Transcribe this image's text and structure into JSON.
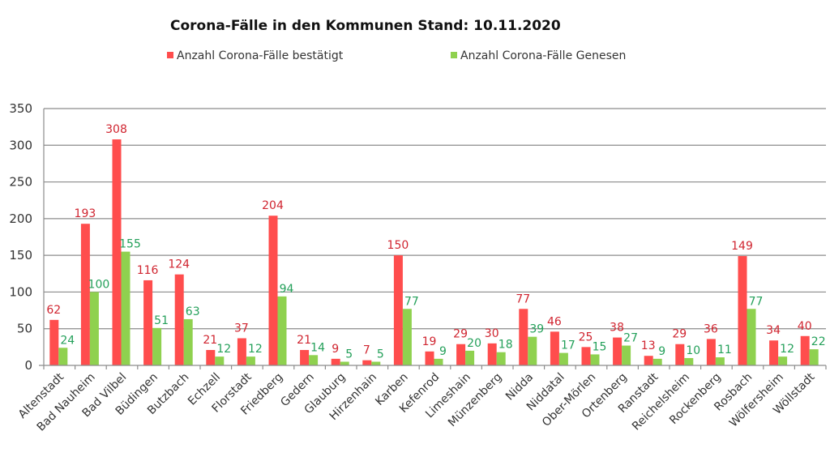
{
  "chart_data": {
    "type": "bar",
    "title": "Corona-Fälle in den Kommunen Stand: 10.11.2020",
    "xlabel": "",
    "ylabel": "",
    "ylim": [
      0,
      350
    ],
    "yticks": [
      0,
      50,
      100,
      150,
      200,
      250,
      300,
      350
    ],
    "grid": true,
    "legend_position": "top",
    "categories": [
      "Altenstadt",
      "Bad Nauheim",
      "Bad Vilbel",
      "Büdingen",
      "Butzbach",
      "Echzell",
      "Florstadt",
      "Friedberg",
      "Gedern",
      "Glauburg",
      "Hirzenhain",
      "Karben",
      "Kefenrod",
      "Limeshain",
      "Münzenberg",
      "Nidda",
      "Niddatal",
      "Ober-Mörlen",
      "Ortenberg",
      "Ranstadt",
      "Reichelsheim",
      "Rockenberg",
      "Rosbach",
      "Wölfersheim",
      "Wöllstadt"
    ],
    "series": [
      {
        "name": "Anzahl Corona-Fälle bestätigt",
        "color": "#ff4d4d",
        "label_color": "#d02530",
        "values": [
          62,
          193,
          308,
          116,
          124,
          21,
          37,
          204,
          21,
          9,
          7,
          150,
          19,
          29,
          30,
          77,
          46,
          25,
          38,
          13,
          29,
          36,
          149,
          34,
          40
        ]
      },
      {
        "name": "Anzahl Corona-Fälle Genesen",
        "color": "#8fd14f",
        "label_color": "#24a05a",
        "values": [
          24,
          100,
          155,
          51,
          63,
          12,
          12,
          94,
          14,
          5,
          5,
          77,
          9,
          20,
          18,
          39,
          17,
          15,
          27,
          9,
          10,
          11,
          77,
          12,
          22
        ]
      }
    ]
  }
}
